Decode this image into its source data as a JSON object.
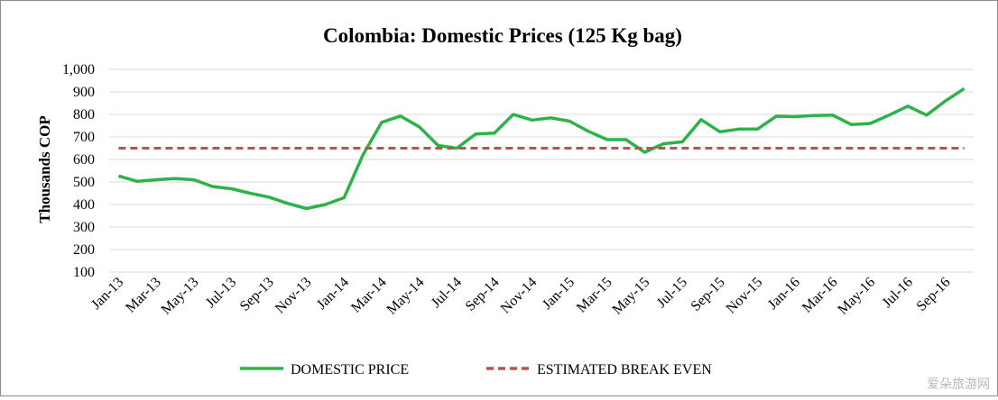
{
  "chart_data": {
    "type": "line",
    "title": "Colombia: Domestic Prices (125 Kg bag)",
    "xlabel": "",
    "ylabel": "Thousands COP",
    "ylim": [
      100,
      1000
    ],
    "yticks": [
      100,
      200,
      300,
      400,
      500,
      600,
      700,
      800,
      900,
      1000
    ],
    "ytick_labels": [
      "100",
      "200",
      "300",
      "400",
      "500",
      "600",
      "700",
      "800",
      "900",
      "1,000"
    ],
    "x": [
      "Jan-13",
      "Feb-13",
      "Mar-13",
      "Apr-13",
      "May-13",
      "Jun-13",
      "Jul-13",
      "Aug-13",
      "Sep-13",
      "Oct-13",
      "Nov-13",
      "Dec-13",
      "Jan-14",
      "Feb-14",
      "Mar-14",
      "Apr-14",
      "May-14",
      "Jun-14",
      "Jul-14",
      "Aug-14",
      "Sep-14",
      "Oct-14",
      "Nov-14",
      "Dec-14",
      "Jan-15",
      "Feb-15",
      "Mar-15",
      "Apr-15",
      "May-15",
      "Jun-15",
      "Jul-15",
      "Aug-15",
      "Sep-15",
      "Oct-15",
      "Nov-15",
      "Dec-15",
      "Jan-16",
      "Feb-16",
      "Mar-16",
      "Apr-16",
      "May-16",
      "Jun-16",
      "Jul-16",
      "Aug-16",
      "Sep-16",
      "Oct-16"
    ],
    "xtick_labels": [
      "Jan-13",
      "Mar-13",
      "May-13",
      "Jul-13",
      "Sep-13",
      "Nov-13",
      "Jan-14",
      "Mar-14",
      "May-14",
      "Jul-14",
      "Sep-14",
      "Nov-14",
      "Jan-15",
      "Mar-15",
      "May-15",
      "Jul-15",
      "Sep-15",
      "Nov-15",
      "Jan-16",
      "Mar-16",
      "May-16",
      "Jul-16",
      "Sep-16"
    ],
    "series": [
      {
        "name": "DOMESTIC PRICE",
        "style": "solid",
        "color": "#2db34a",
        "values": [
          527,
          503,
          510,
          515,
          510,
          480,
          470,
          450,
          433,
          405,
          382,
          400,
          430,
          620,
          765,
          793,
          745,
          662,
          650,
          713,
          717,
          800,
          775,
          785,
          770,
          725,
          688,
          688,
          632,
          670,
          678,
          777,
          723,
          735,
          735,
          792,
          790,
          795,
          797,
          755,
          760,
          797,
          837,
          797,
          860,
          915
        ]
      },
      {
        "name": "ESTIMATED BREAK EVEN",
        "style": "dashed",
        "color": "#c0504d",
        "values": [
          650,
          650,
          650,
          650,
          650,
          650,
          650,
          650,
          650,
          650,
          650,
          650,
          650,
          650,
          650,
          650,
          650,
          650,
          650,
          650,
          650,
          650,
          650,
          650,
          650,
          650,
          650,
          650,
          650,
          650,
          650,
          650,
          650,
          650,
          650,
          650,
          650,
          650,
          650,
          650,
          650,
          650,
          650,
          650,
          650,
          650
        ]
      }
    ],
    "grid": true,
    "legend_position": "bottom-center"
  },
  "watermark": "爱朵旅游网"
}
